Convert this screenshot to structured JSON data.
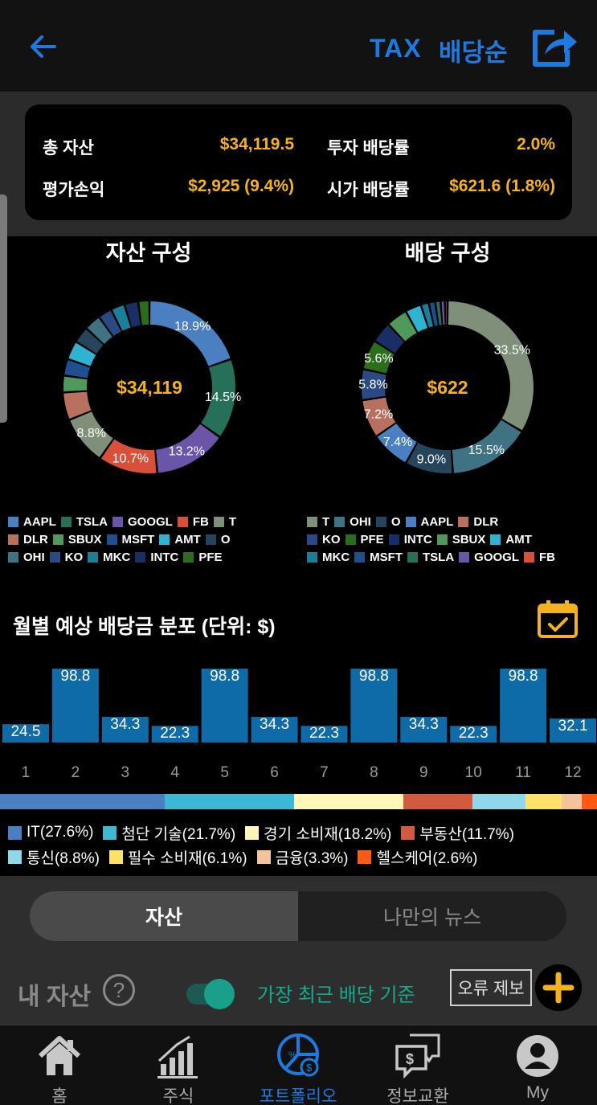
{
  "header": {
    "tax_label": "TAX",
    "sort_label": "배당순"
  },
  "summary": {
    "total_assets_label": "총 자산",
    "total_assets_value": "$34,119.5",
    "unrealized_label": "평가손익",
    "unrealized_value": "$2,925 (9.4%)",
    "invest_yield_label": "투자 배당률",
    "invest_yield_value": "2.0%",
    "market_yield_label": "시가 배당률",
    "market_yield_value": "$621.6 (1.8%)"
  },
  "chart_data": [
    {
      "type": "pie",
      "title": "자산 구성",
      "center_label": "$34,119",
      "slices": [
        {
          "name": "AAPL",
          "value": 18.9,
          "color": "#4a7fc1",
          "label": "18.9%"
        },
        {
          "name": "TSLA",
          "value": 14.5,
          "color": "#26705a",
          "label": "14.5%"
        },
        {
          "name": "GOOGL",
          "value": 13.2,
          "color": "#6a55a8",
          "label": "13.2%"
        },
        {
          "name": "FB",
          "value": 10.7,
          "color": "#d9503a",
          "label": "10.7%"
        },
        {
          "name": "T",
          "value": 8.8,
          "color": "#7f8f7a",
          "label": "8.8%"
        },
        {
          "name": "DLR",
          "value": 5.0,
          "color": "#b8705f",
          "label": ""
        },
        {
          "name": "SBUX",
          "value": 3.0,
          "color": "#4f9a5a",
          "label": ""
        },
        {
          "name": "MSFT",
          "value": 3.0,
          "color": "#1e4f8f",
          "label": ""
        },
        {
          "name": "AMT",
          "value": 3.4,
          "color": "#2fb3d3",
          "label": ""
        },
        {
          "name": "O",
          "value": 3.0,
          "color": "#26455a",
          "label": ""
        },
        {
          "name": "OHI",
          "value": 3.0,
          "color": "#3f7384",
          "label": ""
        },
        {
          "name": "KO",
          "value": 2.5,
          "color": "#2b4a84",
          "label": ""
        },
        {
          "name": "MKC",
          "value": 2.5,
          "color": "#1b7f99",
          "label": ""
        },
        {
          "name": "INTC",
          "value": 2.5,
          "color": "#1a2e66",
          "label": ""
        },
        {
          "name": "PFE",
          "value": 2.0,
          "color": "#2a6e1c",
          "label": ""
        }
      ]
    },
    {
      "type": "pie",
      "title": "배당 구성",
      "center_label": "$622",
      "slices": [
        {
          "name": "T",
          "value": 33.5,
          "color": "#7f8f7a",
          "label": "33.5%"
        },
        {
          "name": "OHI",
          "value": 15.5,
          "color": "#3f7384",
          "label": "15.5%"
        },
        {
          "name": "O",
          "value": 9.0,
          "color": "#26455a",
          "label": "9.0%"
        },
        {
          "name": "AAPL",
          "value": 7.4,
          "color": "#4a7fc1",
          "label": "7.4%"
        },
        {
          "name": "DLR",
          "value": 7.2,
          "color": "#b8705f",
          "label": "7.2%"
        },
        {
          "name": "KO",
          "value": 5.8,
          "color": "#2b4a84",
          "label": "5.8%"
        },
        {
          "name": "PFE",
          "value": 5.6,
          "color": "#2a6e1c",
          "label": "5.6%"
        },
        {
          "name": "INTC",
          "value": 4.0,
          "color": "#1a2e66",
          "label": ""
        },
        {
          "name": "SBUX",
          "value": 4.0,
          "color": "#4f9a5a",
          "label": ""
        },
        {
          "name": "AMT",
          "value": 3.0,
          "color": "#2fb3d3",
          "label": ""
        },
        {
          "name": "MKC",
          "value": 1.5,
          "color": "#1b7f99",
          "label": ""
        },
        {
          "name": "MSFT",
          "value": 1.2,
          "color": "#1e4f8f",
          "label": ""
        },
        {
          "name": "TSLA",
          "value": 1.0,
          "color": "#26705a",
          "label": ""
        },
        {
          "name": "GOOGL",
          "value": 0.8,
          "color": "#6a55a8",
          "label": ""
        },
        {
          "name": "FB",
          "value": 0.5,
          "color": "#d9503a",
          "label": ""
        }
      ]
    },
    {
      "type": "bar",
      "title": "월별 예상 배당금 분포 (단위: $)",
      "categories": [
        "1",
        "2",
        "3",
        "4",
        "5",
        "6",
        "7",
        "8",
        "9",
        "10",
        "11",
        "12"
      ],
      "values": [
        24.5,
        98.8,
        34.3,
        22.3,
        98.8,
        34.3,
        22.3,
        98.8,
        34.3,
        22.3,
        98.8,
        32.1
      ],
      "color": "#0f6aa8",
      "ylim": [
        0,
        98.8
      ]
    }
  ],
  "asset_legend": [
    [
      "AAPL",
      "TSLA",
      "GOOGL",
      "FB",
      "T"
    ],
    [
      "DLR",
      "SBUX",
      "MSFT",
      "AMT",
      "O"
    ],
    [
      "OHI",
      "KO",
      "MKC",
      "INTC",
      "PFE"
    ]
  ],
  "dividend_legend": [
    [
      "T",
      "OHI",
      "O",
      "AAPL",
      "DLR"
    ],
    [
      "KO",
      "PFE",
      "INTC",
      "SBUX",
      "AMT"
    ],
    [
      "MKC",
      "MSFT",
      "TSLA",
      "GOOGL",
      "FB"
    ]
  ],
  "ticker_colors": {
    "AAPL": "#4a7fc1",
    "TSLA": "#26705a",
    "GOOGL": "#6a55a8",
    "FB": "#d9503a",
    "T": "#7f8f7a",
    "DLR": "#b8705f",
    "SBUX": "#4f9a5a",
    "MSFT": "#1e4f8f",
    "AMT": "#2fb3d3",
    "O": "#26455a",
    "OHI": "#3f7384",
    "KO": "#2b4a84",
    "MKC": "#1b7f99",
    "INTC": "#1a2e66",
    "PFE": "#2a6e1c"
  },
  "sectors": [
    {
      "label": "IT(27.6%)",
      "value": 27.6,
      "color": "#4a7fc1"
    },
    {
      "label": "첨단 기술(21.7%)",
      "value": 21.7,
      "color": "#3cb8d4"
    },
    {
      "label": "경기 소비재(18.2%)",
      "value": 18.2,
      "color": "#fff6b8"
    },
    {
      "label": "부동산(11.7%)",
      "value": 11.7,
      "color": "#d25a3e"
    },
    {
      "label": "통신(8.8%)",
      "value": 8.8,
      "color": "#8fd8ea"
    },
    {
      "label": "필수 소비재(6.1%)",
      "value": 6.1,
      "color": "#ffe06a"
    },
    {
      "label": "금융(3.3%)",
      "value": 3.3,
      "color": "#f5c39a"
    },
    {
      "label": "헬스케어(2.6%)",
      "value": 2.6,
      "color": "#ff5a14"
    }
  ],
  "tabs": {
    "assets": "자산",
    "my_news": "나만의 뉴스"
  },
  "controls": {
    "my_assets": "내 자산",
    "help": "?",
    "recent_basis": "가장 최근 배당 기준",
    "report_error": "오류 제보"
  },
  "nav": {
    "home": "홈",
    "stocks": "주식",
    "portfolio": "포트폴리오",
    "exchange": "정보교환",
    "my": "My"
  },
  "colors": {
    "accent": "#1f7ae0",
    "highlight": "#f5b21f",
    "teal": "#18a88e"
  }
}
